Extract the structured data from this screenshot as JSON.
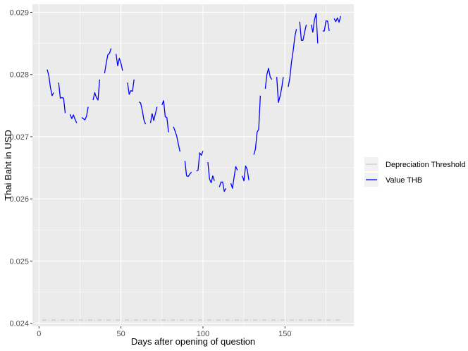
{
  "chart_data": {
    "type": "line",
    "title": "",
    "xlabel": "Days after opening of question",
    "ylabel": "Thai Baht in USD",
    "xlim": [
      -4,
      192
    ],
    "ylim": [
      0.02395,
      0.02913
    ],
    "x_ticks": [
      0,
      50,
      100,
      150
    ],
    "x_tick_labels": [
      "0",
      "50",
      "100",
      "150"
    ],
    "y_ticks": [
      0.024,
      0.025,
      0.026,
      0.027,
      0.028,
      0.029
    ],
    "y_tick_labels": [
      "0.024",
      "0.025",
      "0.026",
      "0.027",
      "0.028",
      "0.029"
    ],
    "grid": true,
    "legend_position": "right",
    "background": "#EBEBEB",
    "series": [
      {
        "name": "Depreciation Threshold",
        "color": "#BEBEBE",
        "style": "dashed",
        "segments": [
          [
            [
              2,
              0.02405
            ],
            [
              184,
              0.02405
            ]
          ]
        ]
      },
      {
        "name": "Value THB",
        "color": "#0000FF",
        "style": "solid",
        "segments": [
          [
            [
              5,
              0.02808
            ],
            [
              6,
              0.02798
            ],
            [
              7,
              0.02779
            ],
            [
              8,
              0.02766
            ],
            [
              9,
              0.02771
            ]
          ],
          [
            [
              12,
              0.02787
            ],
            [
              13,
              0.02762
            ],
            [
              14,
              0.02763
            ],
            [
              15,
              0.02762
            ],
            [
              16,
              0.02738
            ]
          ],
          [
            [
              19,
              0.02736
            ],
            [
              20,
              0.02729
            ],
            [
              21,
              0.02735
            ],
            [
              22,
              0.02728
            ],
            [
              23,
              0.02722
            ]
          ],
          [
            [
              26,
              0.02731
            ],
            [
              27,
              0.02729
            ],
            [
              28,
              0.02727
            ],
            [
              29,
              0.02733
            ],
            [
              30,
              0.02748
            ]
          ],
          [
            [
              33,
              0.02759
            ],
            [
              34,
              0.02771
            ],
            [
              35,
              0.02763
            ],
            [
              36,
              0.02759
            ],
            [
              37,
              0.02792
            ]
          ],
          [
            [
              40,
              0.02802
            ],
            [
              41,
              0.02818
            ],
            [
              42,
              0.02832
            ],
            [
              43,
              0.02834
            ],
            [
              44,
              0.02842
            ]
          ],
          [
            [
              47,
              0.02833
            ],
            [
              48,
              0.02814
            ],
            [
              49,
              0.02826
            ],
            [
              50,
              0.02818
            ],
            [
              51,
              0.02806
            ]
          ],
          [
            [
              54,
              0.02787
            ],
            [
              55,
              0.02768
            ],
            [
              56,
              0.02774
            ],
            [
              57,
              0.02773
            ],
            [
              58,
              0.02792
            ]
          ],
          [
            [
              61,
              0.02756
            ],
            [
              62,
              0.02754
            ],
            [
              63,
              0.02742
            ],
            [
              64,
              0.02727
            ],
            [
              65,
              0.0272
            ]
          ],
          [
            [
              68,
              0.02722
            ],
            [
              69,
              0.02737
            ],
            [
              70,
              0.02726
            ],
            [
              71,
              0.02737
            ],
            [
              72,
              0.02748
            ]
          ],
          [
            [
              75,
              0.02751
            ],
            [
              76,
              0.02758
            ],
            [
              77,
              0.02732
            ],
            [
              78,
              0.02731
            ],
            [
              79,
              0.02707
            ]
          ],
          [
            [
              82,
              0.02716
            ],
            [
              83,
              0.02709
            ],
            [
              84,
              0.02701
            ],
            [
              85,
              0.02688
            ],
            [
              86,
              0.02676
            ]
          ],
          [
            [
              89,
              0.02661
            ],
            [
              90,
              0.02637
            ],
            [
              91,
              0.02636
            ],
            [
              92,
              0.0264
            ],
            [
              93,
              0.02643
            ]
          ],
          [
            [
              96,
              0.02645
            ],
            [
              97,
              0.02646
            ],
            [
              98,
              0.02674
            ],
            [
              99,
              0.0267
            ],
            [
              100,
              0.02677
            ]
          ],
          [
            [
              103,
              0.02659
            ],
            [
              104,
              0.02632
            ],
            [
              105,
              0.02626
            ],
            [
              106,
              0.02637
            ],
            [
              107,
              0.02629
            ]
          ],
          [
            [
              110,
              0.02619
            ],
            [
              111,
              0.02627
            ],
            [
              112,
              0.02627
            ],
            [
              113,
              0.02612
            ],
            [
              114,
              0.02617
            ]
          ],
          [
            [
              117,
              0.02625
            ],
            [
              118,
              0.02617
            ],
            [
              119,
              0.02635
            ],
            [
              120,
              0.02652
            ],
            [
              121,
              0.02646
            ]
          ],
          [
            [
              124,
              0.02637
            ],
            [
              125,
              0.02629
            ],
            [
              126,
              0.02653
            ],
            [
              127,
              0.02647
            ],
            [
              128,
              0.0263
            ]
          ],
          [
            [
              131,
              0.02671
            ],
            [
              132,
              0.0268
            ],
            [
              133,
              0.02707
            ],
            [
              134,
              0.02712
            ],
            [
              135,
              0.02766
            ]
          ],
          [
            [
              138,
              0.02777
            ],
            [
              139,
              0.028
            ],
            [
              140,
              0.0281
            ],
            [
              141,
              0.02796
            ],
            [
              142,
              0.02792
            ]
          ],
          [
            [
              145,
              0.02796
            ],
            [
              146,
              0.02755
            ],
            [
              147,
              0.02765
            ],
            [
              148,
              0.02778
            ],
            [
              149,
              0.02796
            ]
          ],
          [
            [
              152,
              0.0278
            ],
            [
              153,
              0.02795
            ],
            [
              154,
              0.0282
            ],
            [
              155,
              0.02838
            ],
            [
              156,
              0.0286
            ],
            [
              157,
              0.02873
            ]
          ],
          [
            [
              159,
              0.02885
            ],
            [
              160,
              0.02855
            ],
            [
              161,
              0.02855
            ],
            [
              162,
              0.02868
            ],
            [
              163,
              0.0288
            ]
          ],
          [
            [
              166,
              0.0288
            ],
            [
              167,
              0.02868
            ],
            [
              168,
              0.02888
            ],
            [
              169,
              0.02898
            ],
            [
              170,
              0.0285
            ]
          ],
          [
            [
              173,
              0.0287
            ],
            [
              174,
              0.0287
            ],
            [
              175,
              0.02886
            ],
            [
              176,
              0.02886
            ],
            [
              177,
              0.0287
            ]
          ],
          [
            [
              180,
              0.0289
            ],
            [
              181,
              0.02885
            ],
            [
              182,
              0.02891
            ],
            [
              183,
              0.02884
            ],
            [
              184,
              0.02894
            ]
          ]
        ]
      }
    ]
  }
}
